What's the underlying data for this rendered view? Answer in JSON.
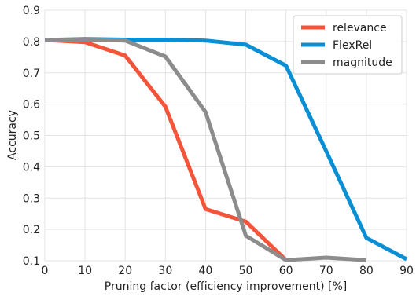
{
  "chart_data": {
    "type": "line",
    "title": "",
    "xlabel": "Pruning factor (efficiency improvement) [%]",
    "ylabel": "Accuracy",
    "xlim": [
      0,
      90
    ],
    "ylim": [
      0.1,
      0.9
    ],
    "x_ticks": [
      0,
      10,
      20,
      30,
      40,
      50,
      60,
      70,
      80,
      90
    ],
    "y_ticks": [
      0.1,
      0.2,
      0.3,
      0.4,
      0.5,
      0.6,
      0.7,
      0.8,
      0.9
    ],
    "y_tick_labels": [
      "0.1",
      "0.2",
      "0.3",
      "0.4",
      "0.5",
      "0.6",
      "0.7",
      "0.8",
      "0.9"
    ],
    "grid": true,
    "legend_position": "top-right",
    "x": [
      0,
      10,
      20,
      30,
      40,
      50,
      60,
      70,
      80,
      90
    ],
    "series": [
      {
        "name": "relevance",
        "color": "#f4543a",
        "values": [
          0.805,
          0.798,
          0.755,
          0.592,
          0.265,
          0.225,
          0.102,
          null,
          null,
          null
        ]
      },
      {
        "name": "FlexRel",
        "color": "#0a8fd4",
        "values": [
          0.805,
          0.808,
          0.806,
          0.806,
          0.803,
          0.79,
          0.723,
          0.45,
          0.173,
          0.105
        ]
      },
      {
        "name": "magnitude",
        "color": "#8c8c8c",
        "values": [
          0.806,
          0.806,
          0.803,
          0.752,
          0.575,
          0.18,
          0.102,
          0.11,
          0.102,
          null
        ]
      }
    ]
  }
}
